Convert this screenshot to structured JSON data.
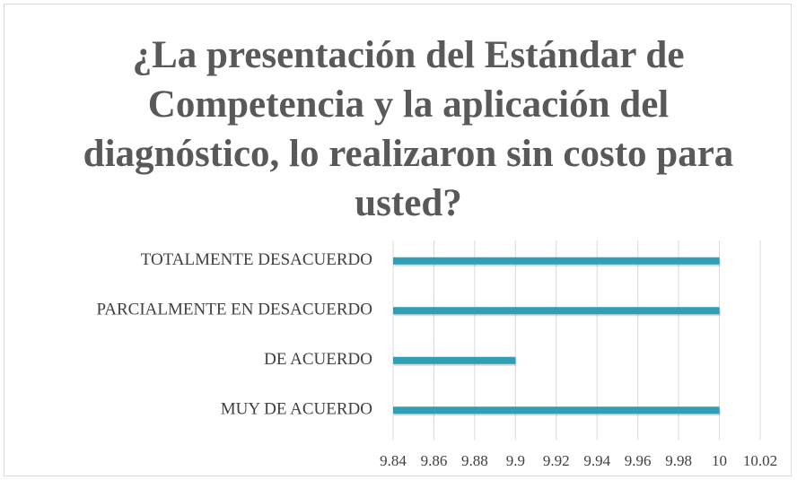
{
  "chart_data": {
    "type": "bar",
    "orientation": "horizontal",
    "title": "¿La presentación del Estándar de Competencia y la aplicación del diagnóstico, lo realizaron sin costo para usted?",
    "categories": [
      "TOTALMENTE DESACUERDO",
      "PARCIALMENTE EN DESACUERDO",
      "DE ACUERDO",
      "MUY DE ACUERDO"
    ],
    "values": [
      10,
      10,
      9.9,
      10
    ],
    "color": "#2e9fb5",
    "xlim": [
      9.84,
      10.02
    ],
    "xticks": [
      9.84,
      9.86,
      9.88,
      9.9,
      9.92,
      9.94,
      9.96,
      9.98,
      10,
      10.02
    ],
    "grid": true
  }
}
